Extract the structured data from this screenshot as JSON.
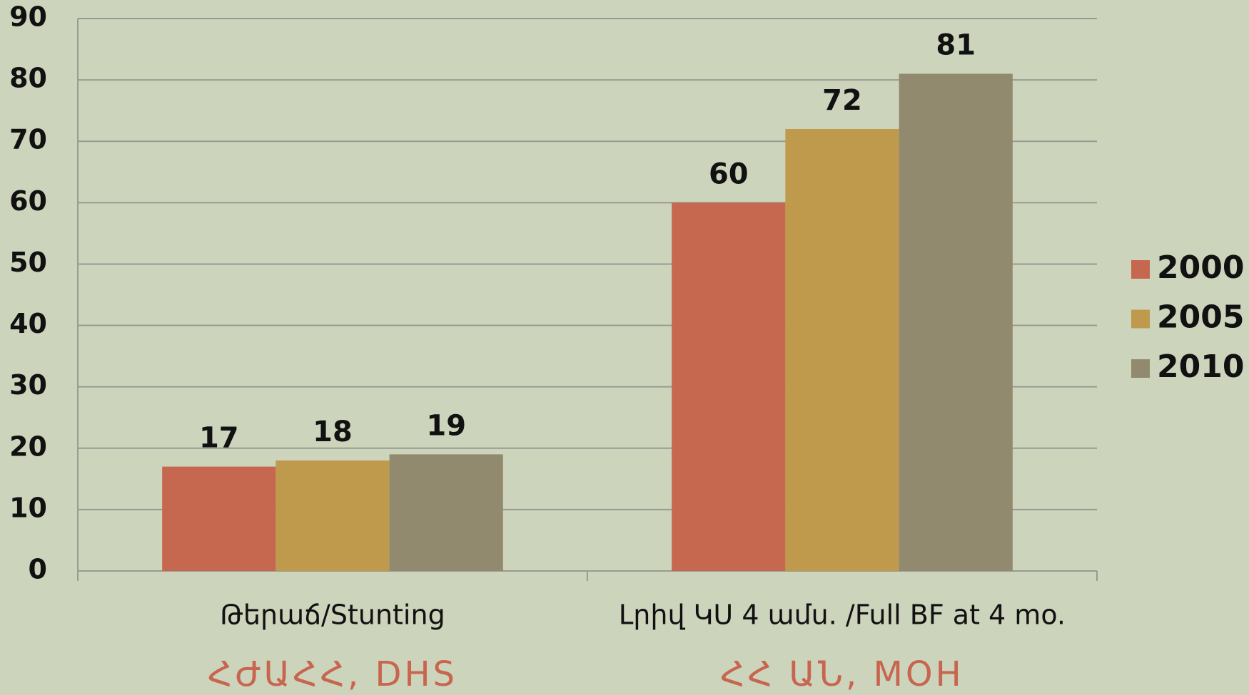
{
  "chart_data": {
    "type": "bar",
    "categories": [
      "Թերաճ/Stunting",
      "Լրիվ ԿՍ 4 ամս. /Full BF at 4 mo."
    ],
    "source_labels": [
      "ՀԺԱՀՀ, DHS",
      "ՀՀ ԱՆ, MOH"
    ],
    "series": [
      {
        "name": "2000",
        "color": "#c5684f",
        "values": [
          17,
          60
        ]
      },
      {
        "name": "2005",
        "color": "#c09a4c",
        "values": [
          18,
          72
        ]
      },
      {
        "name": "2010",
        "color": "#918a6e",
        "values": [
          19,
          81
        ]
      }
    ],
    "ylim": [
      0,
      90
    ],
    "yticks": [
      0,
      10,
      20,
      30,
      40,
      50,
      60,
      70,
      80,
      90
    ],
    "grid": true,
    "legend": "right"
  }
}
